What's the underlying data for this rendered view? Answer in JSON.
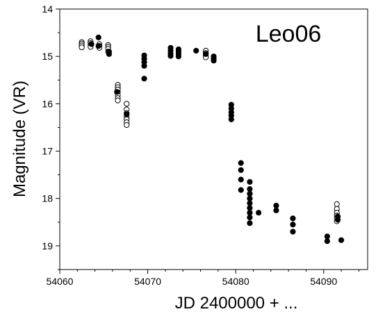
{
  "chart_data": {
    "type": "scatter",
    "title": "Leo06",
    "xlabel": "JD 2400000 + ...",
    "ylabel": "Magnitude (VR)",
    "xlim": [
      54060,
      54095
    ],
    "ylim": [
      14,
      19.5
    ],
    "y_inverted": true,
    "grid": false,
    "legend": "none",
    "x_ticks": [
      54060,
      54070,
      54080,
      54090
    ],
    "y_ticks": [
      14,
      15,
      16,
      17,
      18,
      19
    ],
    "marker_color": "#000000",
    "series": [
      {
        "marker": "open-circle",
        "points": [
          [
            54062.5,
            14.7
          ],
          [
            54062.5,
            14.73
          ],
          [
            54062.5,
            14.77
          ],
          [
            54062.5,
            14.81
          ],
          [
            54063.5,
            14.68
          ],
          [
            54063.5,
            14.72
          ],
          [
            54063.5,
            14.76
          ],
          [
            54063.5,
            14.8
          ],
          [
            54064.5,
            14.74
          ],
          [
            54064.5,
            14.78
          ],
          [
            54064.5,
            14.82
          ],
          [
            54065.5,
            14.76
          ],
          [
            54065.5,
            14.8
          ],
          [
            54065.5,
            14.84
          ],
          [
            54065.5,
            14.9
          ],
          [
            54066.6,
            15.6
          ],
          [
            54066.6,
            15.65
          ],
          [
            54066.6,
            15.7
          ],
          [
            54066.6,
            15.76
          ],
          [
            54066.6,
            15.82
          ],
          [
            54066.6,
            15.88
          ],
          [
            54066.6,
            15.93
          ],
          [
            54067.6,
            16.0
          ],
          [
            54067.6,
            16.12
          ],
          [
            54067.6,
            16.2
          ],
          [
            54067.6,
            16.27
          ],
          [
            54067.6,
            16.33
          ],
          [
            54067.6,
            16.39
          ],
          [
            54067.6,
            16.45
          ],
          [
            54076.6,
            14.88
          ],
          [
            54076.6,
            14.93
          ],
          [
            54076.6,
            14.98
          ],
          [
            54076.6,
            15.02
          ],
          [
            54091.5,
            18.12
          ],
          [
            54091.5,
            18.22
          ],
          [
            54091.5,
            18.3
          ],
          [
            54091.5,
            18.36
          ],
          [
            54091.5,
            18.42
          ],
          [
            54091.5,
            18.48
          ]
        ]
      },
      {
        "marker": "filled-circle",
        "points": [
          [
            54063.6,
            14.74
          ],
          [
            54064.4,
            14.6
          ],
          [
            54064.4,
            14.78
          ],
          [
            54065.6,
            14.9
          ],
          [
            54065.6,
            14.95
          ],
          [
            54066.5,
            15.75
          ],
          [
            54067.6,
            16.22
          ],
          [
            54069.6,
            14.98
          ],
          [
            54069.6,
            15.05
          ],
          [
            54069.6,
            15.12
          ],
          [
            54069.6,
            15.2
          ],
          [
            54069.6,
            15.47
          ],
          [
            54072.6,
            14.82
          ],
          [
            54072.6,
            14.88
          ],
          [
            54072.6,
            14.94
          ],
          [
            54072.6,
            14.99
          ],
          [
            54073.5,
            14.85
          ],
          [
            54073.5,
            14.9
          ],
          [
            54073.5,
            14.95
          ],
          [
            54073.5,
            15.0
          ],
          [
            54075.5,
            14.88
          ],
          [
            54076.6,
            14.95
          ],
          [
            54077.5,
            15.0
          ],
          [
            54077.5,
            15.05
          ],
          [
            54077.5,
            15.09
          ],
          [
            54079.5,
            16.02
          ],
          [
            54079.5,
            16.1
          ],
          [
            54079.5,
            16.18
          ],
          [
            54079.5,
            16.25
          ],
          [
            54079.5,
            16.33
          ],
          [
            54080.6,
            17.25
          ],
          [
            54080.6,
            17.4
          ],
          [
            54080.6,
            17.6
          ],
          [
            54080.6,
            17.82
          ],
          [
            54081.6,
            17.65
          ],
          [
            54081.6,
            17.8
          ],
          [
            54081.6,
            17.9
          ],
          [
            54081.6,
            18.0
          ],
          [
            54081.6,
            18.1
          ],
          [
            54081.6,
            18.2
          ],
          [
            54081.6,
            18.3
          ],
          [
            54081.6,
            18.4
          ],
          [
            54081.6,
            18.52
          ],
          [
            54082.6,
            18.3
          ],
          [
            54084.6,
            18.15
          ],
          [
            54084.6,
            18.25
          ],
          [
            54086.5,
            18.42
          ],
          [
            54086.5,
            18.55
          ],
          [
            54086.5,
            18.7
          ],
          [
            54090.4,
            18.8
          ],
          [
            54090.4,
            18.9
          ],
          [
            54091.6,
            18.38
          ],
          [
            54091.6,
            18.45
          ],
          [
            54092.0,
            18.88
          ]
        ]
      }
    ]
  }
}
